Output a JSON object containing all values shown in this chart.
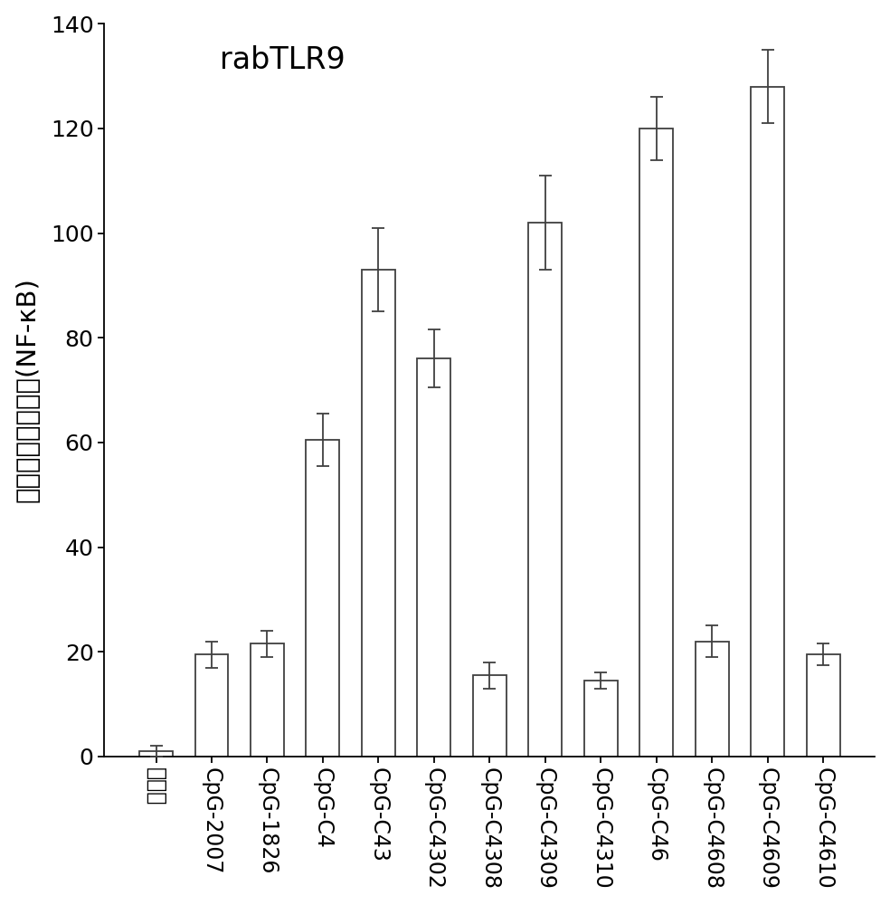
{
  "categories": [
    "控制组",
    "CpG-2007",
    "CpG-1826",
    "CpG-C4",
    "CpG-C43",
    "CpG-C4302",
    "CpG-C4308",
    "CpG-C4309",
    "CpG-C4310",
    "CpG-C46",
    "CpG-C4608",
    "CpG-C4609",
    "CpG-C4610"
  ],
  "values": [
    1.0,
    19.5,
    21.5,
    60.5,
    93.0,
    76.0,
    15.5,
    102.0,
    14.5,
    120.0,
    22.0,
    128.0,
    19.5
  ],
  "errors": [
    1.0,
    2.5,
    2.5,
    5.0,
    8.0,
    5.5,
    2.5,
    9.0,
    1.5,
    6.0,
    3.0,
    7.0,
    2.0
  ],
  "bar_color": "#ffffff",
  "bar_edgecolor": "#404040",
  "error_color": "#404040",
  "title": "rabTLR9",
  "ylabel": "相对荧光素酶活性(NF-κB)",
  "ylim": [
    0,
    140
  ],
  "yticks": [
    0,
    20,
    40,
    60,
    80,
    100,
    120,
    140
  ],
  "title_fontsize": 24,
  "ylabel_fontsize": 21,
  "tick_fontsize": 18,
  "xtick_fontsize": 17,
  "bar_width": 0.6,
  "linewidth": 1.3,
  "capsize": 5
}
